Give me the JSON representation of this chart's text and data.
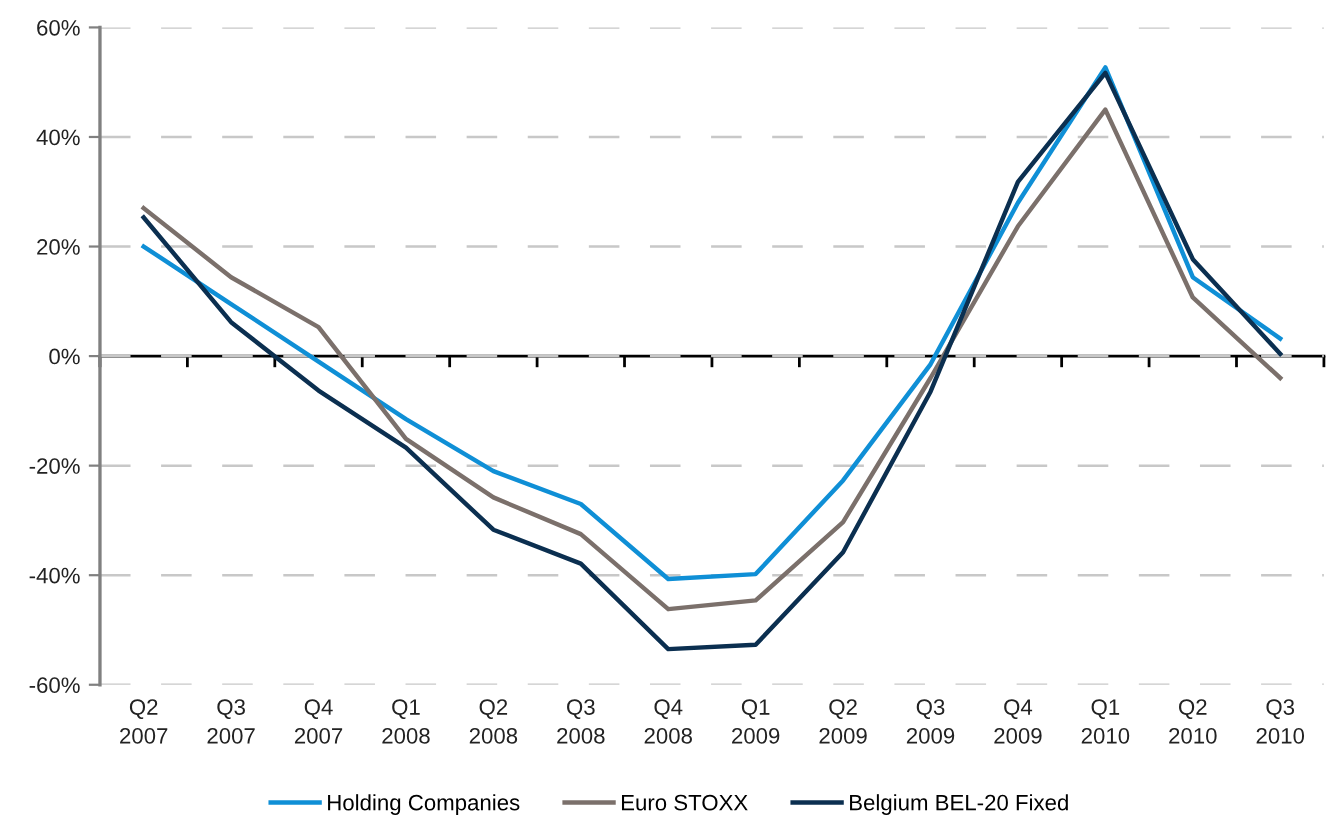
{
  "chart_data": {
    "type": "line",
    "categories": [
      "Q2\n2007",
      "Q3\n2007",
      "Q4\n2007",
      "Q1\n2008",
      "Q2\n2008",
      "Q3\n2008",
      "Q4\n2008",
      "Q1\n2009",
      "Q2\n2009",
      "Q3\n2009",
      "Q4\n2009",
      "Q1\n2010",
      "Q2\n2010",
      "Q3\n2010"
    ],
    "series": [
      {
        "name": "Holding Companies",
        "color": "#0f8fd6",
        "values": [
          20,
          9.5,
          -1,
          -11.5,
          -21,
          -27,
          -40.7,
          -39.8,
          -22.7,
          -1.5,
          28,
          52.7,
          14.4,
          3.2
        ]
      },
      {
        "name": "Euro STOXX",
        "color": "#7b706b",
        "values": [
          27,
          14.4,
          5.3,
          -15.1,
          -25.8,
          -32.5,
          -46.2,
          -44.6,
          -30.3,
          -4,
          23.7,
          45,
          10.7,
          -4
        ]
      },
      {
        "name": "Belgium BEL-20 Fixed",
        "color": "#0b2f50",
        "values": [
          25.3,
          6.2,
          -6.3,
          -16.7,
          -31.7,
          -37.9,
          -53.5,
          -52.7,
          -35.8,
          -6.5,
          31.8,
          51.7,
          17.7,
          0.4
        ]
      }
    ],
    "ylim": [
      -60,
      60
    ],
    "yticks": [
      {
        "value": -60,
        "label": "-60%"
      },
      {
        "value": -40,
        "label": "-40%"
      },
      {
        "value": -20,
        "label": "-20%"
      },
      {
        "value": 0,
        "label": "0%"
      },
      {
        "value": 20,
        "label": "20%"
      },
      {
        "value": 40,
        "label": "40%"
      },
      {
        "value": 60,
        "label": "60%"
      }
    ],
    "grid": "y",
    "legend": "bottom",
    "line_style": "solid"
  }
}
